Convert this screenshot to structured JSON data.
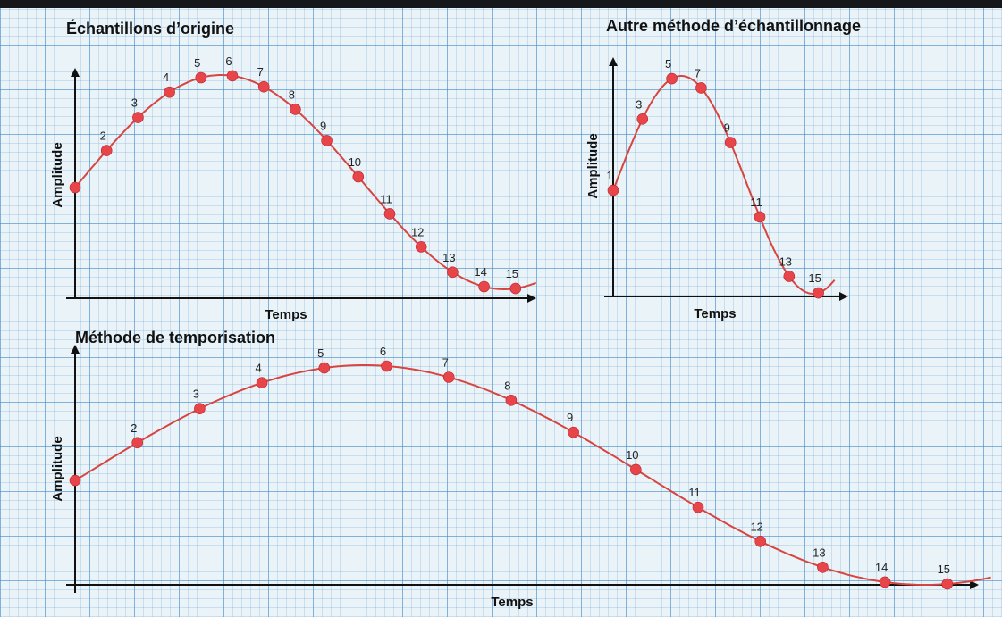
{
  "colors": {
    "curve": "#d8443f",
    "point": "#e8454a",
    "axis": "#111111",
    "paper": "#eaf3f8",
    "grid": "#468cc8"
  },
  "panels": [
    {
      "id": "original",
      "title": "Échantillons d’origine",
      "ylabel": "Amplitude",
      "xlabel": "Temps",
      "points": [
        {
          "label": "1",
          "t": 0,
          "show_label": false
        },
        {
          "label": "2",
          "t": 1
        },
        {
          "label": "3",
          "t": 2
        },
        {
          "label": "4",
          "t": 3
        },
        {
          "label": "5",
          "t": 4
        },
        {
          "label": "6",
          "t": 5
        },
        {
          "label": "7",
          "t": 6
        },
        {
          "label": "8",
          "t": 7
        },
        {
          "label": "9",
          "t": 8
        },
        {
          "label": "10",
          "t": 9
        },
        {
          "label": "11",
          "t": 10
        },
        {
          "label": "12",
          "t": 11
        },
        {
          "label": "13",
          "t": 12
        },
        {
          "label": "14",
          "t": 13
        },
        {
          "label": "15",
          "t": 14
        }
      ]
    },
    {
      "id": "alternate",
      "title": "Autre méthode d’échantillonnage",
      "ylabel": "Amplitude",
      "xlabel": "Temps",
      "points": [
        {
          "label": "1",
          "t": 0
        },
        {
          "label": "3",
          "t": 2
        },
        {
          "label": "5",
          "t": 4
        },
        {
          "label": "7",
          "t": 6
        },
        {
          "label": "9",
          "t": 8
        },
        {
          "label": "11",
          "t": 10
        },
        {
          "label": "13",
          "t": 12
        },
        {
          "label": "15",
          "t": 14
        }
      ]
    },
    {
      "id": "timing",
      "title": "Méthode de temporisation",
      "ylabel": "Amplitude",
      "xlabel": "Temps",
      "points": [
        {
          "label": "1",
          "t": 0,
          "show_label": false
        },
        {
          "label": "2",
          "t": 1
        },
        {
          "label": "3",
          "t": 2
        },
        {
          "label": "4",
          "t": 3
        },
        {
          "label": "5",
          "t": 4
        },
        {
          "label": "6",
          "t": 5
        },
        {
          "label": "7",
          "t": 6
        },
        {
          "label": "8",
          "t": 7
        },
        {
          "label": "9",
          "t": 8
        },
        {
          "label": "10",
          "t": 9
        },
        {
          "label": "11",
          "t": 10
        },
        {
          "label": "12",
          "t": 11
        },
        {
          "label": "13",
          "t": 12
        },
        {
          "label": "14",
          "t": 13
        },
        {
          "label": "15",
          "t": 14
        }
      ]
    }
  ]
}
